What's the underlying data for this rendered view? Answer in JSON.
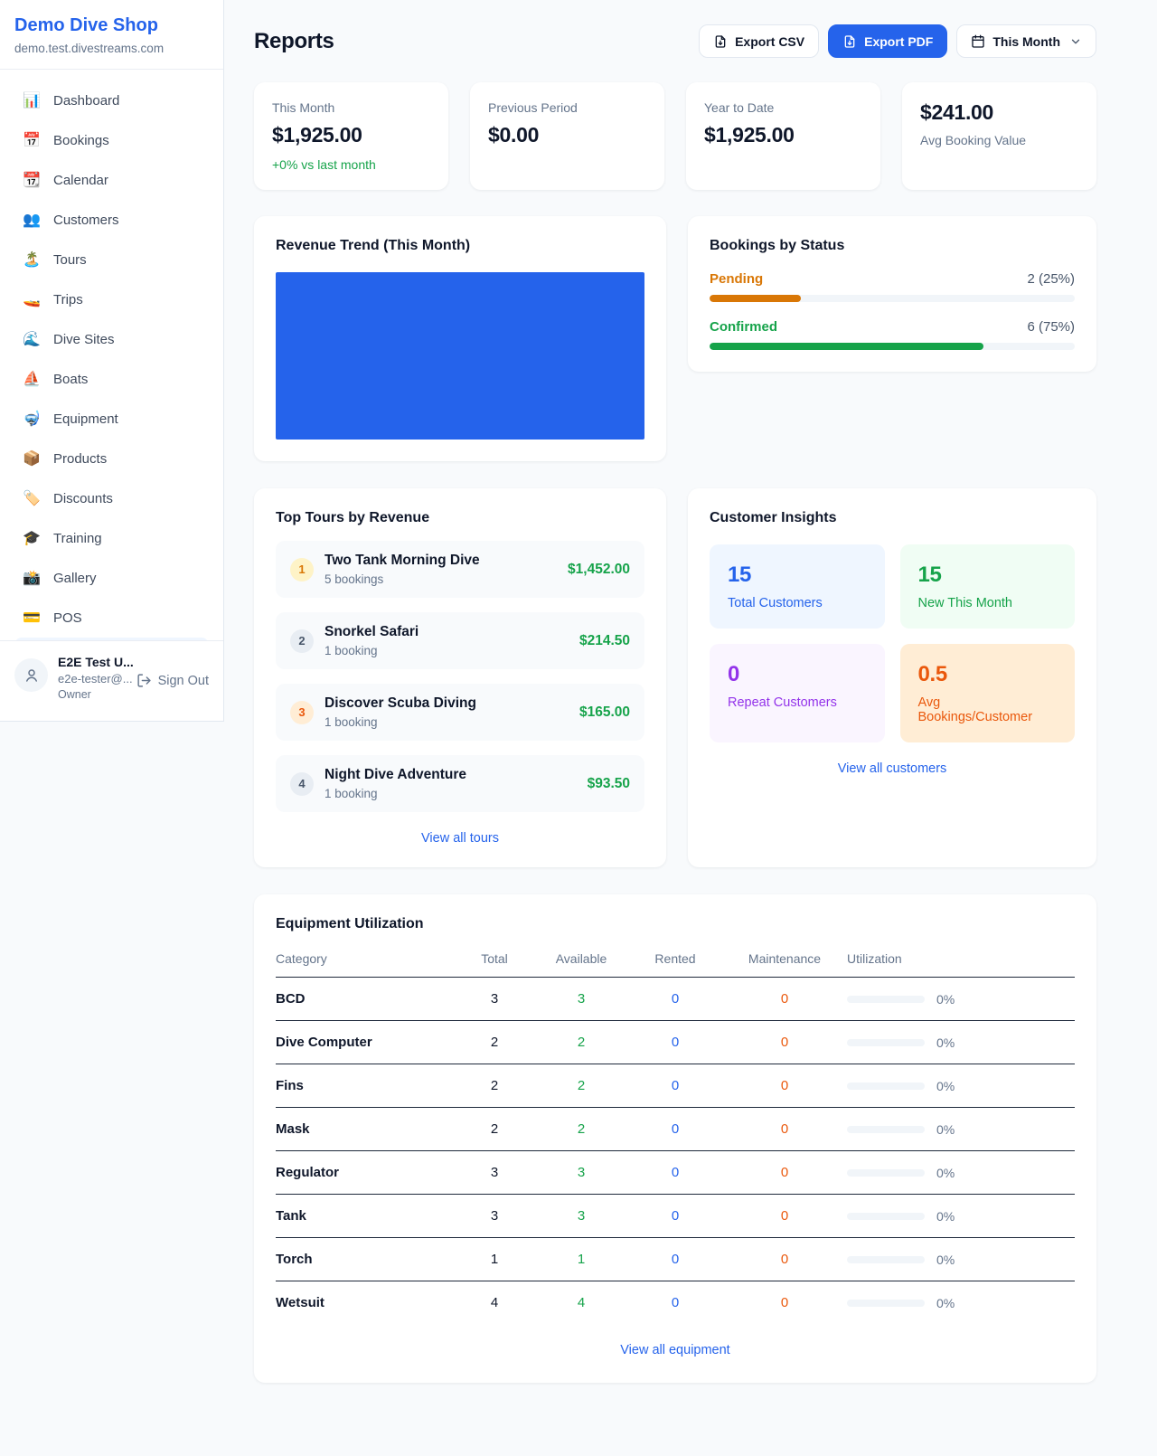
{
  "brand": {
    "name": "Demo Dive Shop",
    "domain": "demo.test.divestreams.com"
  },
  "colors": {
    "accent": "#2563eb",
    "positive": "#16a34a",
    "pending": "#d97706",
    "confirmed": "#16a34a",
    "rented": "#2563eb",
    "maintenance": "#ea580c",
    "revenue_block": "#2563eb"
  },
  "sidebar": {
    "items": [
      {
        "icon": "📊",
        "label": "Dashboard",
        "name": "sidebar-item-dashboard",
        "icon_name": "dashboard-icon"
      },
      {
        "icon": "📅",
        "label": "Bookings",
        "name": "sidebar-item-bookings",
        "icon_name": "bookings-calendar-icon"
      },
      {
        "icon": "📆",
        "label": "Calendar",
        "name": "sidebar-item-calendar",
        "icon_name": "calendar-icon"
      },
      {
        "icon": "👥",
        "label": "Customers",
        "name": "sidebar-item-customers",
        "icon_name": "customers-icon"
      },
      {
        "icon": "🏝️",
        "label": "Tours",
        "name": "sidebar-item-tours",
        "icon_name": "island-icon"
      },
      {
        "icon": "🚤",
        "label": "Trips",
        "name": "sidebar-item-trips",
        "icon_name": "speedboat-icon"
      },
      {
        "icon": "🌊",
        "label": "Dive Sites",
        "name": "sidebar-item-dive-sites",
        "icon_name": "wave-icon"
      },
      {
        "icon": "⛵",
        "label": "Boats",
        "name": "sidebar-item-boats",
        "icon_name": "sailboat-icon"
      },
      {
        "icon": "🤿",
        "label": "Equipment",
        "name": "sidebar-item-equipment",
        "icon_name": "diving-mask-icon"
      },
      {
        "icon": "📦",
        "label": "Products",
        "name": "sidebar-item-products",
        "icon_name": "package-icon"
      },
      {
        "icon": "🏷️",
        "label": "Discounts",
        "name": "sidebar-item-discounts",
        "icon_name": "tag-icon"
      },
      {
        "icon": "🎓",
        "label": "Training",
        "name": "sidebar-item-training",
        "icon_name": "graduation-cap-icon"
      },
      {
        "icon": "📸",
        "label": "Gallery",
        "name": "sidebar-item-gallery",
        "icon_name": "camera-icon"
      },
      {
        "icon": "💳",
        "label": "POS",
        "name": "sidebar-item-pos",
        "icon_name": "credit-card-icon"
      }
    ],
    "user": {
      "name": "E2E Test U...",
      "email": "e2e-tester@...",
      "role": "Owner",
      "sign_out": "Sign Out"
    }
  },
  "header": {
    "title": "Reports",
    "export_csv": "Export CSV",
    "export_pdf": "Export PDF",
    "period": "This Month"
  },
  "stats": [
    {
      "label": "This Month",
      "value": "$1,925.00",
      "delta": "+0% vs last month",
      "layout": "label-first"
    },
    {
      "label": "Previous Period",
      "value": "$0.00",
      "layout": "label-first"
    },
    {
      "label": "Year to Date",
      "value": "$1,925.00",
      "layout": "label-first"
    },
    {
      "label": "Avg Booking Value",
      "value": "$241.00",
      "layout": "value-first"
    }
  ],
  "revenue_trend": {
    "title": "Revenue Trend (This Month)"
  },
  "bookings_by_status": {
    "title": "Bookings by Status",
    "rows": [
      {
        "label": "Pending",
        "value": "2 (25%)",
        "percent": 25,
        "color": "#d97706"
      },
      {
        "label": "Confirmed",
        "value": "6 (75%)",
        "percent": 75,
        "color": "#16a34a"
      }
    ]
  },
  "top_tours": {
    "title": "Top Tours by Revenue",
    "items": [
      {
        "rank": "1",
        "badge": "gold",
        "name": "Two Tank Morning Dive",
        "bookings": "5 bookings",
        "revenue": "$1,452.00"
      },
      {
        "rank": "2",
        "badge": "plain",
        "name": "Snorkel Safari",
        "bookings": "1 booking",
        "revenue": "$214.50"
      },
      {
        "rank": "3",
        "badge": "bronze",
        "name": "Discover Scuba Diving",
        "bookings": "1 booking",
        "revenue": "$165.00"
      },
      {
        "rank": "4",
        "badge": "plain",
        "name": "Night Dive Adventure",
        "bookings": "1 booking",
        "revenue": "$93.50"
      }
    ],
    "view_all": "View all tours"
  },
  "customer_insights": {
    "title": "Customer Insights",
    "tiles": [
      {
        "value": "15",
        "label": "Total Customers",
        "theme": "blue"
      },
      {
        "value": "15",
        "label": "New This Month",
        "theme": "green"
      },
      {
        "value": "0",
        "label": "Repeat Customers",
        "theme": "purple"
      },
      {
        "value": "0.5",
        "label": "Avg Bookings/Customer",
        "theme": "orange"
      }
    ],
    "view_all": "View all customers"
  },
  "equipment": {
    "title": "Equipment Utilization",
    "columns": [
      "Category",
      "Total",
      "Available",
      "Rented",
      "Maintenance",
      "Utilization"
    ],
    "rows": [
      {
        "category": "BCD",
        "total": "3",
        "available": "3",
        "rented": "0",
        "maintenance": "0",
        "utilization": "0%",
        "pct": 0
      },
      {
        "category": "Dive Computer",
        "total": "2",
        "available": "2",
        "rented": "0",
        "maintenance": "0",
        "utilization": "0%",
        "pct": 0
      },
      {
        "category": "Fins",
        "total": "2",
        "available": "2",
        "rented": "0",
        "maintenance": "0",
        "utilization": "0%",
        "pct": 0
      },
      {
        "category": "Mask",
        "total": "2",
        "available": "2",
        "rented": "0",
        "maintenance": "0",
        "utilization": "0%",
        "pct": 0
      },
      {
        "category": "Regulator",
        "total": "3",
        "available": "3",
        "rented": "0",
        "maintenance": "0",
        "utilization": "0%",
        "pct": 0
      },
      {
        "category": "Tank",
        "total": "3",
        "available": "3",
        "rented": "0",
        "maintenance": "0",
        "utilization": "0%",
        "pct": 0
      },
      {
        "category": "Torch",
        "total": "1",
        "available": "1",
        "rented": "0",
        "maintenance": "0",
        "utilization": "0%",
        "pct": 0
      },
      {
        "category": "Wetsuit",
        "total": "4",
        "available": "4",
        "rented": "0",
        "maintenance": "0",
        "utilization": "0%",
        "pct": 0
      }
    ],
    "view_all": "View all equipment"
  }
}
